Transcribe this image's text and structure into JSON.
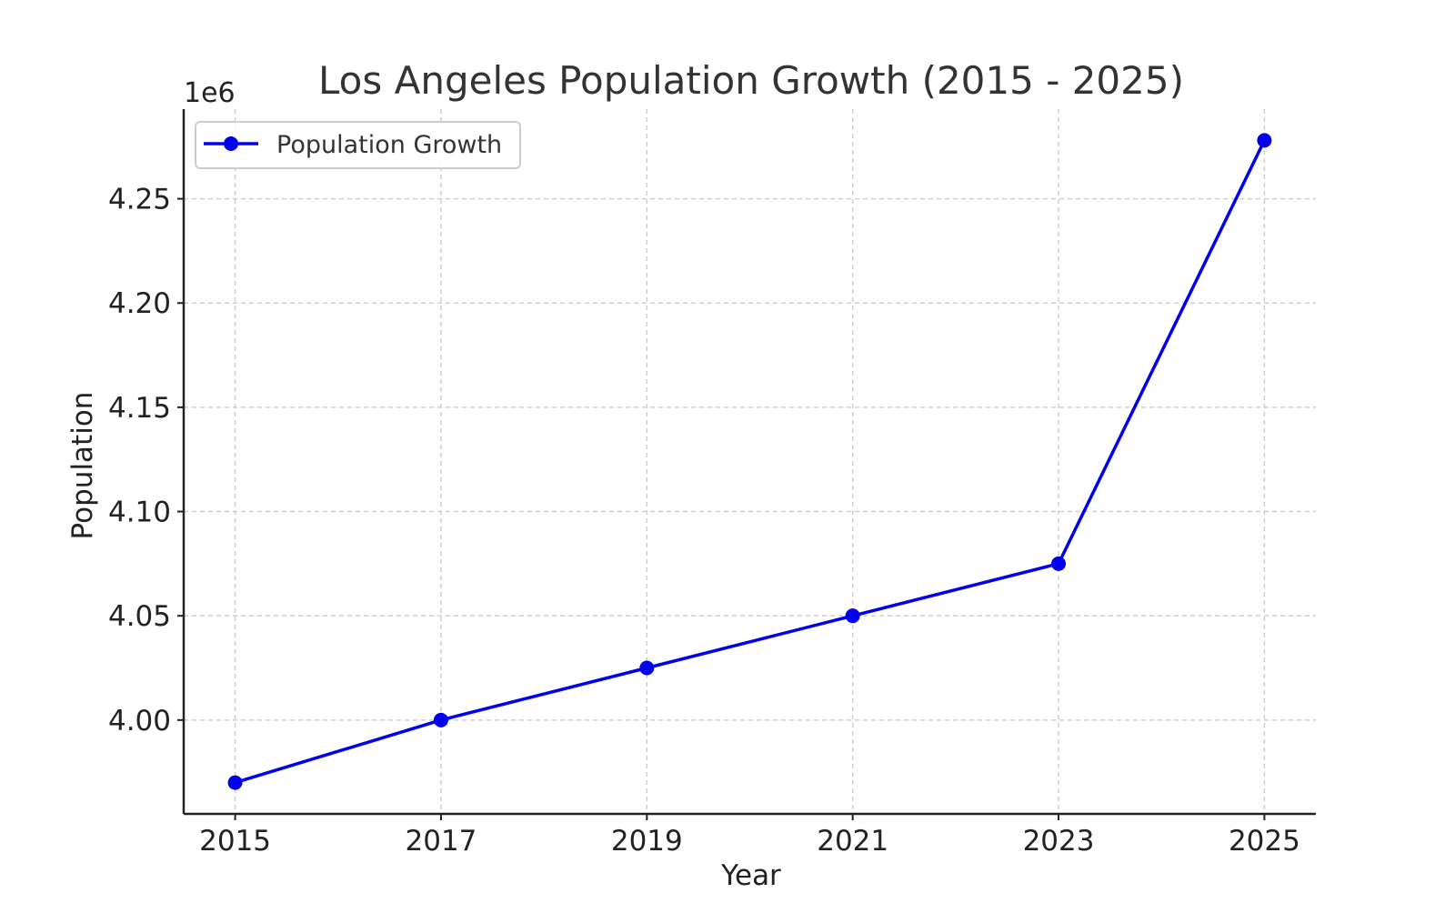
{
  "chart_data": {
    "type": "line",
    "title": "Los Angeles Population Growth (2015 - 2025)",
    "xlabel": "Year",
    "ylabel": "Population",
    "y_offset_label": "1e6",
    "x": [
      2015,
      2017,
      2019,
      2021,
      2023,
      2025
    ],
    "x_ticks": [
      2015,
      2017,
      2019,
      2021,
      2023,
      2025
    ],
    "y_ticks": [
      4.0,
      4.05,
      4.1,
      4.15,
      4.2,
      4.25
    ],
    "y_tick_labels": [
      "4.00",
      "4.05",
      "4.10",
      "4.15",
      "4.20",
      "4.25"
    ],
    "xlim": [
      2014.5,
      2025.5
    ],
    "ylim": [
      3.955,
      4.293
    ],
    "grid": true,
    "legend_position": "top-left",
    "series": [
      {
        "name": "Population Growth",
        "color": "#0000ee",
        "marker": "circle",
        "values": [
          3.97,
          4.0,
          4.025,
          4.05,
          4.075,
          4.278
        ]
      }
    ]
  }
}
